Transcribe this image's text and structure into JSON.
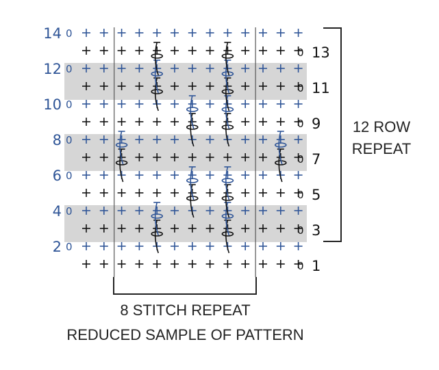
{
  "colors": {
    "even": "#2f5597",
    "odd": "#111111",
    "shade": "#d6d6d6",
    "line": "#555555",
    "bracket": "#222222"
  },
  "chart": {
    "rows": [
      1,
      2,
      3,
      4,
      5,
      6,
      7,
      8,
      9,
      10,
      11,
      12,
      13,
      14
    ],
    "even_row_labels": [
      "2",
      "4",
      "6",
      "8",
      "10",
      "12",
      "14"
    ],
    "odd_row_labels": [
      "1",
      "3",
      "5",
      "7",
      "9",
      "11",
      "13"
    ],
    "chain_label": "0",
    "stitch_symbol": "single-crochet-plus",
    "stitches_per_row": 13,
    "shaded_row_pairs": [
      [
        3,
        4
      ],
      [
        7,
        8
      ],
      [
        11,
        12
      ]
    ],
    "stitch_repeat_boundaries_after_stitch": [
      2,
      10
    ]
  },
  "captions": {
    "row_repeat_line1": "12 ROW",
    "row_repeat_line2": "REPEAT",
    "stitch_repeat": "8 STITCH REPEAT",
    "reduced_sample": "REDUCED SAMPLE OF PATTERN"
  }
}
